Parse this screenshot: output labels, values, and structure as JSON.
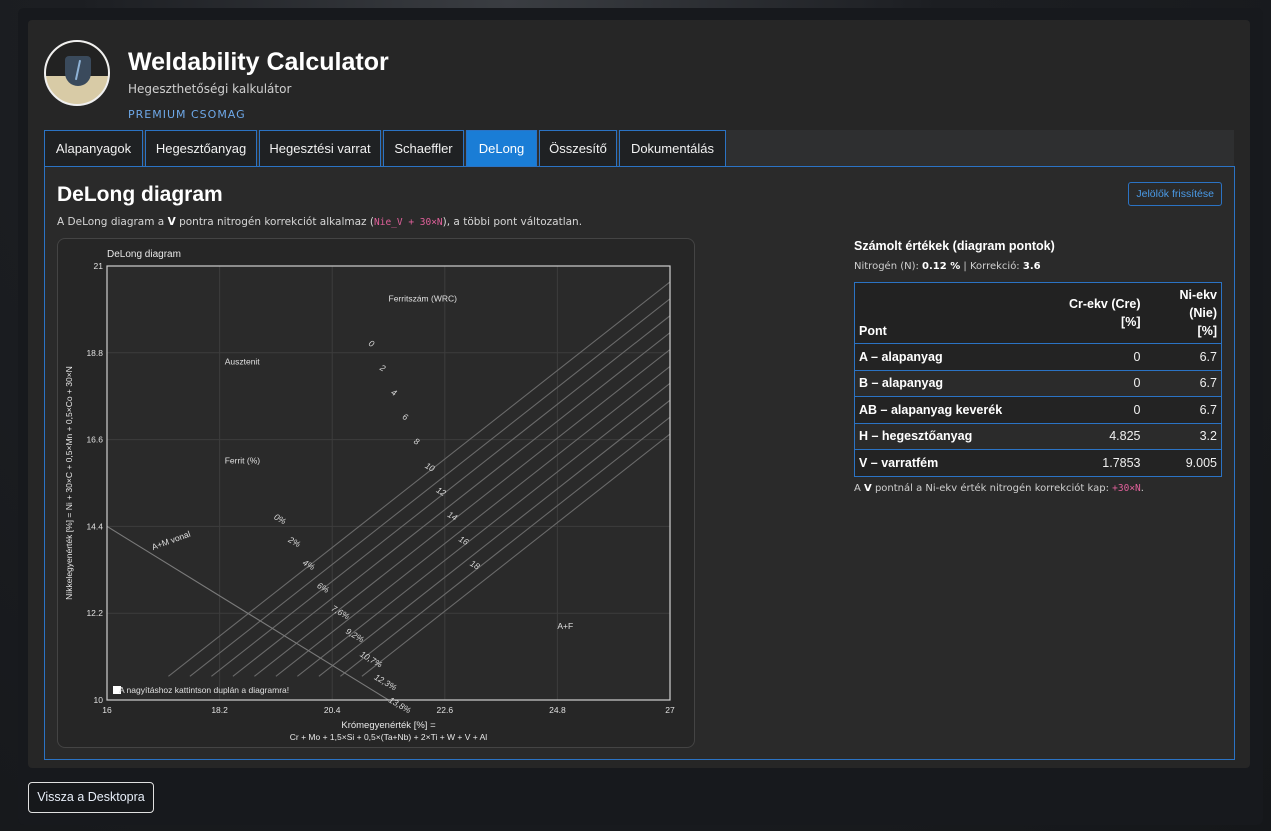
{
  "app": {
    "title": "Weldability Calculator",
    "subtitle": "Hegeszthetőségi kalkulátor",
    "edition": "PREMIUM CSOMAG"
  },
  "tabs": [
    {
      "label": "Alapanyagok",
      "active": false
    },
    {
      "label": "Hegesztőanyag",
      "active": false
    },
    {
      "label": "Hegesztési varrat",
      "active": false
    },
    {
      "label": "Schaeffler",
      "active": false
    },
    {
      "label": "DeLong",
      "active": true
    },
    {
      "label": "Összesítő",
      "active": false
    },
    {
      "label": "Dokumentálás",
      "active": false
    }
  ],
  "panel": {
    "title": "DeLong diagram",
    "desc_prefix": "A DeLong diagram a ",
    "desc_point": "V",
    "desc_middle": " pontra nitrogén korrekciót alkalmaz (",
    "desc_code": "Nie_V + 30×N",
    "desc_suffix": "), a többi pont változatlan.",
    "refresh_label": "Jelölők frissítése"
  },
  "side": {
    "title": "Számolt értékek (diagram pontok)",
    "nitrogen_label": "Nitrogén (N): ",
    "nitrogen_value": "0.12 %",
    "separator": " | ",
    "correction_label": "Korrekció: ",
    "correction_value": "3.6",
    "table": {
      "col_point": "Pont",
      "col_cr_line1": "Cr-ekv (Cre)",
      "col_cr_line2": "[%]",
      "col_ni_line1": "Ni-ekv (Nie)",
      "col_ni_line2": "[%]",
      "rows": [
        {
          "name": "A – alapanyag",
          "cr": "0",
          "ni": "6.7"
        },
        {
          "name": "B – alapanyag",
          "cr": "0",
          "ni": "6.7"
        },
        {
          "name": "AB – alapanyag keverék",
          "cr": "0",
          "ni": "6.7"
        },
        {
          "name": "H – hegesztőanyag",
          "cr": "4.825",
          "ni": "3.2"
        },
        {
          "name": "V – varratfém",
          "cr": "1.7853",
          "ni": "9.005"
        }
      ]
    },
    "note_prefix": "A ",
    "note_point": "V",
    "note_middle": " pontnál a Ni-ekv érték nitrogén korrekciót kap: ",
    "note_code": "+30×N",
    "note_suffix": "."
  },
  "back_label": "Vissza a Desktopra",
  "chart_data": {
    "type": "line",
    "title": "DeLong diagram",
    "xlabel_line1": "Krómegyenérték [%] =",
    "xlabel_line2": "Cr + Mo + 1,5×Si + 0,5×(Ta+Nb) + 2×Ti + W + V + Al",
    "ylabel": "Nikkelegyenérték [%] = Ni + 30×C + 0,5×Mn + 0,5×Co + 30×N",
    "xlim": [
      16,
      27
    ],
    "ylim": [
      10,
      21
    ],
    "xticks": [
      "16",
      "18.2",
      "20.4",
      "22.6",
      "24.8",
      "27"
    ],
    "yticks": [
      "10",
      "12.2",
      "14.4",
      "16.6",
      "18.8",
      "21"
    ],
    "grid": true,
    "region_labels": [
      {
        "text": "Ausztenit",
        "x": 18.3,
        "y": 18.5
      },
      {
        "text": "Ferrit (%)",
        "x": 18.3,
        "y": 16.0
      },
      {
        "text": "Ferritszám (WRC)",
        "x": 21.5,
        "y": 20.1
      },
      {
        "text": "A+F",
        "x": 24.8,
        "y": 11.8
      },
      {
        "text": "A+M vonal",
        "x": 16.9,
        "y": 13.8
      }
    ],
    "ferrite_number_labels": [
      "0",
      "2",
      "4",
      "6",
      "8",
      "10",
      "12",
      "14",
      "16",
      "18"
    ],
    "ferrite_percent_labels": [
      "0%",
      "2%",
      "4%",
      "6%",
      "7,6%",
      "9,2%",
      "10,7%",
      "12,3%",
      "13,8%"
    ],
    "hint": "A nagyításhoz kattintson duplán a diagramra!"
  }
}
